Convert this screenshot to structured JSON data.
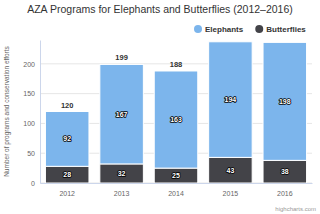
{
  "chart_data": {
    "type": "bar",
    "title": "AZA Programs for Elephants and Butterflies (2012–2016)",
    "y_label": "Number of programs and conservation efforts",
    "categories": [
      "2012",
      "2013",
      "2014",
      "2015",
      "2016"
    ],
    "series": [
      {
        "name": "Elephants",
        "color": "#7cb5ec",
        "values": [
          92,
          167,
          163,
          194,
          198
        ]
      },
      {
        "name": "Butterflies",
        "color": "#434348",
        "values": [
          28,
          32,
          25,
          43,
          38
        ]
      }
    ],
    "totals": [
      120,
      199,
      188,
      null,
      null
    ],
    "annotations": [
      "highcharts.com"
    ],
    "ylim": [
      0,
      240
    ],
    "yticks": [
      0,
      50,
      100,
      150,
      200
    ],
    "stacked": true,
    "data_labels": true,
    "grid": true,
    "legend": "top-right"
  }
}
